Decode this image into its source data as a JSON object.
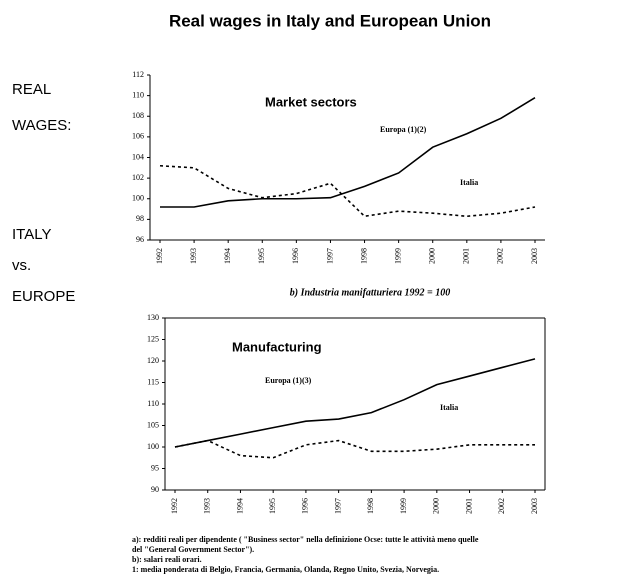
{
  "title": "Real wages in Italy and European Union",
  "side_labels": [
    "REAL",
    "WAGES:",
    "ITALY",
    "vs.",
    "EUROPE"
  ],
  "subtitle": "b) Industria manifatturiera 1992 = 100",
  "footnotes": [
    "a): redditi reali per dipendente ( \"Business sector\" nella definizione Ocse: tutte le attività meno quelle",
    "del \"General Government Sector\").",
    "b): salari reali orari.",
    "1: media ponderata di Belgio, Francia, Germania, Olanda, Regno Unito, Svezia, Norvegia."
  ],
  "chart_data": [
    {
      "type": "line",
      "annotation": "Market sectors",
      "categories": [
        "1992",
        "1993",
        "1994",
        "1995",
        "1996",
        "1997",
        "1998",
        "1999",
        "2000",
        "2001",
        "2002",
        "2003"
      ],
      "series": [
        {
          "name": "Europa (1)(2)",
          "color": "#000000",
          "style": "solid",
          "values": [
            99.2,
            99.2,
            99.8,
            100,
            100,
            100.1,
            101.2,
            102.5,
            105,
            106.3,
            107.8,
            109.8
          ]
        },
        {
          "name": "Italia",
          "color": "#000000",
          "style": "dashed",
          "values": [
            103.2,
            103,
            101,
            100.1,
            100.5,
            101.5,
            98.3,
            98.8,
            98.6,
            98.3,
            98.6,
            99.2
          ]
        }
      ],
      "ylim": [
        96,
        112
      ],
      "yticks": [
        96,
        98,
        100,
        102,
        104,
        106,
        108,
        110,
        112
      ]
    },
    {
      "type": "line",
      "annotation": "Manufacturing",
      "categories": [
        "1992",
        "1993",
        "1994",
        "1995",
        "1996",
        "1997",
        "1998",
        "1999",
        "2000",
        "2001",
        "2002",
        "2003"
      ],
      "series": [
        {
          "name": "Europa (1)(3)",
          "color": "#000000",
          "style": "solid",
          "values": [
            100,
            101.5,
            103,
            104.5,
            106,
            106.5,
            108,
            111,
            114.5,
            116.5,
            118.5,
            120.5
          ]
        },
        {
          "name": "Italia",
          "color": "#000000",
          "style": "dashed",
          "values": [
            100,
            101.5,
            98,
            97.5,
            100.5,
            101.5,
            99,
            99,
            99.5,
            100.5,
            100.5,
            100.5
          ]
        }
      ],
      "ylim": [
        90,
        130
      ],
      "yticks": [
        90,
        95,
        100,
        105,
        110,
        115,
        120,
        125,
        130
      ]
    }
  ]
}
